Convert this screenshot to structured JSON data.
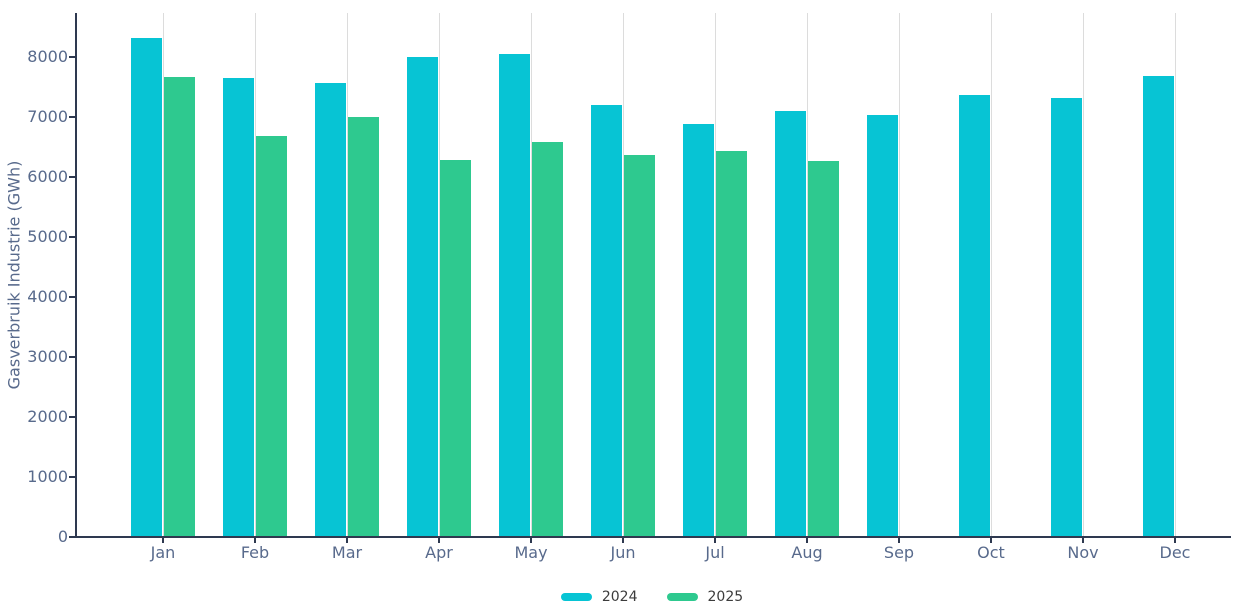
{
  "chart_data": {
    "type": "bar",
    "title": "",
    "xlabel": "",
    "ylabel": "Gasverbruik Industrie (GWh)",
    "categories": [
      "Jan",
      "Feb",
      "Mar",
      "Apr",
      "May",
      "Jun",
      "Jul",
      "Aug",
      "Sep",
      "Oct",
      "Nov",
      "Dec"
    ],
    "series": [
      {
        "name": "2024",
        "color": "#07c4d4",
        "values": [
          8320,
          7650,
          7560,
          8000,
          8050,
          7200,
          6880,
          7100,
          7030,
          7370,
          7310,
          7690
        ]
      },
      {
        "name": "2025",
        "color": "#2ec98f",
        "values": [
          7660,
          6690,
          7000,
          6280,
          6590,
          6360,
          6440,
          6260,
          null,
          null,
          null,
          null
        ]
      }
    ],
    "yticks": [
      0,
      1000,
      2000,
      3000,
      4000,
      5000,
      6000,
      7000,
      8000
    ],
    "ylim": [
      0,
      8730
    ],
    "grid": "vertical-only",
    "legend_position": "bottom-center"
  },
  "colors": {
    "series_2024": "#07c4d4",
    "series_2025": "#2ec98f",
    "axis_line": "#2e3950",
    "axis_tick_label": "#586a8c",
    "gridline": "#dcdcdc",
    "legend_text": "#3c3c3c",
    "background": "#ffffff"
  }
}
